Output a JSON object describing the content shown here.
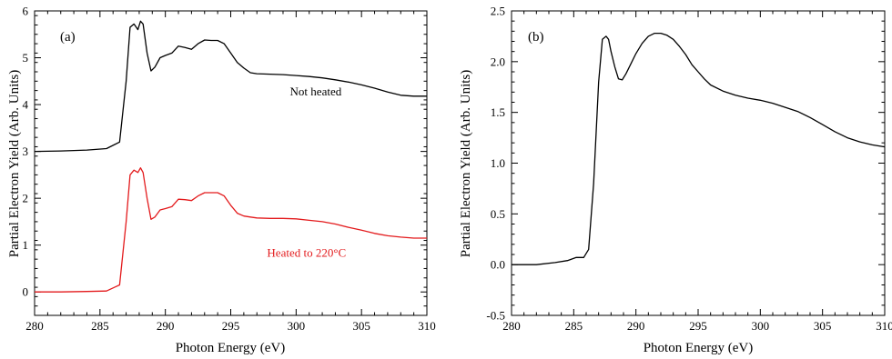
{
  "chart_data": [
    {
      "type": "line",
      "panel_label": "(a)",
      "xlabel": "Photon Energy (eV)",
      "ylabel": "Partial Electron Yield (Arb. Units)",
      "xlim": [
        280,
        310
      ],
      "ylim": [
        -0.5,
        6
      ],
      "xticks": [
        280,
        285,
        290,
        295,
        300,
        305,
        310
      ],
      "yticks": [
        0,
        1,
        2,
        3,
        4,
        5,
        6
      ],
      "grid": false,
      "series": [
        {
          "name": "Not heated",
          "color": "#000000",
          "x": [
            280,
            282,
            284,
            285.5,
            286.5,
            287.0,
            287.3,
            287.6,
            287.9,
            288.1,
            288.3,
            288.6,
            288.9,
            289.2,
            289.6,
            290.0,
            290.5,
            291.0,
            291.5,
            292.0,
            292.5,
            293.0,
            293.5,
            294.0,
            294.5,
            295.0,
            295.5,
            296.0,
            296.5,
            297.0,
            298.0,
            299.0,
            300.0,
            301.0,
            302.0,
            303.0,
            304.0,
            305.0,
            306.0,
            307.0,
            308.0,
            309.0,
            310.0
          ],
          "y": [
            3.0,
            3.01,
            3.03,
            3.06,
            3.2,
            4.5,
            5.65,
            5.72,
            5.6,
            5.78,
            5.72,
            5.1,
            4.72,
            4.8,
            5.0,
            5.05,
            5.1,
            5.25,
            5.22,
            5.18,
            5.3,
            5.38,
            5.37,
            5.37,
            5.3,
            5.1,
            4.9,
            4.78,
            4.68,
            4.66,
            4.65,
            4.64,
            4.62,
            4.6,
            4.57,
            4.53,
            4.48,
            4.42,
            4.35,
            4.27,
            4.2,
            4.18,
            4.18
          ]
        },
        {
          "name": "Heated to 220°C",
          "color": "#e31a1c",
          "x": [
            280,
            282,
            284,
            285.5,
            286.5,
            287.0,
            287.3,
            287.6,
            287.9,
            288.1,
            288.3,
            288.6,
            288.9,
            289.2,
            289.6,
            290.0,
            290.5,
            291.0,
            291.5,
            292.0,
            292.5,
            293.0,
            293.5,
            294.0,
            294.5,
            295.0,
            295.5,
            296.0,
            296.5,
            297.0,
            298.0,
            299.0,
            300.0,
            301.0,
            302.0,
            303.0,
            304.0,
            305.0,
            306.0,
            307.0,
            308.0,
            309.0,
            310.0
          ],
          "y": [
            0.0,
            0.0,
            0.01,
            0.02,
            0.15,
            1.5,
            2.5,
            2.6,
            2.55,
            2.65,
            2.55,
            2.0,
            1.55,
            1.6,
            1.75,
            1.78,
            1.82,
            1.98,
            1.97,
            1.95,
            2.05,
            2.12,
            2.12,
            2.12,
            2.05,
            1.85,
            1.68,
            1.62,
            1.6,
            1.58,
            1.57,
            1.57,
            1.56,
            1.53,
            1.5,
            1.45,
            1.38,
            1.32,
            1.25,
            1.2,
            1.17,
            1.15,
            1.15
          ]
        }
      ],
      "annotations": [
        {
          "text": "Not heated",
          "x": 301.5,
          "y": 4.2,
          "color": "#000000"
        },
        {
          "text": "Heated to 220°C",
          "x": 300.8,
          "y": 0.75,
          "color": "#e31a1c"
        }
      ]
    },
    {
      "type": "line",
      "panel_label": "(b)",
      "xlabel": "Photon Energy (eV)",
      "ylabel": "Partial Electron Yield (Arb. Units)",
      "xlim": [
        280,
        310
      ],
      "ylim": [
        -0.5,
        2.5
      ],
      "xticks": [
        280,
        285,
        290,
        295,
        300,
        305,
        310
      ],
      "yticks": [
        -0.5,
        0.0,
        0.5,
        1.0,
        1.5,
        2.0,
        2.5
      ],
      "ytick_labels": [
        "-0.5",
        "0.0",
        "0.5",
        "1.0",
        "1.5",
        "2.0",
        "2.5"
      ],
      "grid": false,
      "series": [
        {
          "color": "#000000",
          "x": [
            280,
            282,
            283.5,
            284.5,
            285.2,
            285.8,
            286.2,
            286.6,
            287.0,
            287.3,
            287.6,
            287.8,
            288.0,
            288.3,
            288.6,
            288.9,
            289.2,
            289.6,
            290.0,
            290.5,
            291.0,
            291.5,
            292.0,
            292.5,
            293.0,
            293.5,
            294.0,
            294.5,
            295.0,
            295.5,
            296.0,
            297.0,
            298.0,
            299.0,
            300.0,
            301.0,
            302.0,
            303.0,
            304.0,
            305.0,
            306.0,
            307.0,
            308.0,
            309.0,
            310.0
          ],
          "y": [
            0.0,
            0.0,
            0.02,
            0.04,
            0.07,
            0.07,
            0.15,
            0.8,
            1.8,
            2.22,
            2.25,
            2.22,
            2.1,
            1.95,
            1.83,
            1.82,
            1.88,
            1.98,
            2.08,
            2.18,
            2.25,
            2.28,
            2.28,
            2.26,
            2.22,
            2.15,
            2.07,
            1.97,
            1.9,
            1.83,
            1.77,
            1.71,
            1.67,
            1.64,
            1.62,
            1.59,
            1.55,
            1.51,
            1.45,
            1.38,
            1.31,
            1.25,
            1.21,
            1.18,
            1.16
          ]
        }
      ]
    }
  ]
}
